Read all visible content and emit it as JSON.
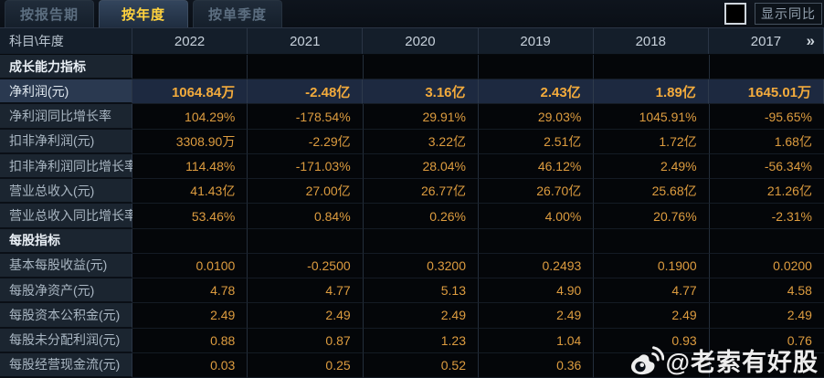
{
  "tabs": [
    {
      "label": "按报告期",
      "active": false
    },
    {
      "label": "按年度",
      "active": true
    },
    {
      "label": "按单季度",
      "active": false
    }
  ],
  "controls": {
    "yoy_checkbox_checked": false,
    "yoy_button_label": "显示同比"
  },
  "table": {
    "corner_header": "科目\\年度",
    "years": [
      "2022",
      "2021",
      "2020",
      "2019",
      "2018",
      "2017"
    ],
    "more_icon": "»",
    "rows": [
      {
        "label": "成长能力指标",
        "type": "section",
        "values": [
          "",
          "",
          "",
          "",
          "",
          ""
        ]
      },
      {
        "label": "净利润(元)",
        "type": "highlight",
        "values": [
          "1064.84万",
          "-2.48亿",
          "3.16亿",
          "2.43亿",
          "1.89亿",
          "1645.01万"
        ]
      },
      {
        "label": "净利润同比增长率",
        "type": "data",
        "values": [
          "104.29%",
          "-178.54%",
          "29.91%",
          "29.03%",
          "1045.91%",
          "-95.65%"
        ]
      },
      {
        "label": "扣非净利润(元)",
        "type": "data",
        "values": [
          "3308.90万",
          "-2.29亿",
          "3.22亿",
          "2.51亿",
          "1.72亿",
          "1.68亿"
        ]
      },
      {
        "label": "扣非净利润同比增长率",
        "type": "data",
        "values": [
          "114.48%",
          "-171.03%",
          "28.04%",
          "46.12%",
          "2.49%",
          "-56.34%"
        ]
      },
      {
        "label": "营业总收入(元)",
        "type": "data",
        "values": [
          "41.43亿",
          "27.00亿",
          "26.77亿",
          "26.70亿",
          "25.68亿",
          "21.26亿"
        ]
      },
      {
        "label": "营业总收入同比增长率",
        "type": "data",
        "values": [
          "53.46%",
          "0.84%",
          "0.26%",
          "4.00%",
          "20.76%",
          "-2.31%"
        ]
      },
      {
        "label": "每股指标",
        "type": "section",
        "values": [
          "",
          "",
          "",
          "",
          "",
          ""
        ]
      },
      {
        "label": "基本每股收益(元)",
        "type": "data",
        "values": [
          "0.0100",
          "-0.2500",
          "0.3200",
          "0.2493",
          "0.1900",
          "0.0200"
        ]
      },
      {
        "label": "每股净资产(元)",
        "type": "data",
        "values": [
          "4.78",
          "4.77",
          "5.13",
          "4.90",
          "4.77",
          "4.58"
        ]
      },
      {
        "label": "每股资本公积金(元)",
        "type": "data",
        "values": [
          "2.49",
          "2.49",
          "2.49",
          "2.49",
          "2.49",
          "2.49"
        ]
      },
      {
        "label": "每股未分配利润(元)",
        "type": "data",
        "values": [
          "0.88",
          "0.87",
          "1.23",
          "1.04",
          "0.93",
          "0.76"
        ]
      },
      {
        "label": "每股经营现金流(元)",
        "type": "data",
        "values": [
          "0.03",
          "0.25",
          "0.52",
          "0.36",
          "",
          ""
        ]
      }
    ]
  },
  "watermark": {
    "icon": "weibo-icon",
    "text": "@老索有好股"
  },
  "colors": {
    "accent_gold": "#ffd23e",
    "value_orange": "#dd9c3f",
    "highlight_value_orange": "#f3ab3c",
    "highlight_row_bg": "#1d2940",
    "label_col_bg": "#1b2530",
    "header_row_bg": "#141e2a",
    "data_cell_bg": "#040609",
    "page_bg": "#0a0f16"
  }
}
